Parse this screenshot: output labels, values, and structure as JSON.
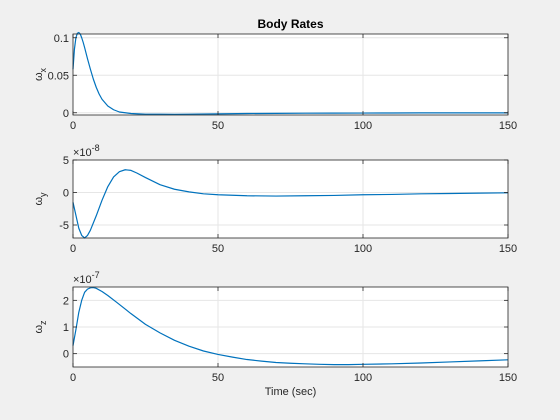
{
  "figure": {
    "background": "#f0f0f0",
    "axes_background": "#ffffff",
    "line_color": "#0072bd",
    "grid_color": "#e6e6e6",
    "axis_color": "#262626"
  },
  "chart_data": [
    {
      "type": "line",
      "title": "Body Rates",
      "ylabel": "ω",
      "ylabel_sub": "x",
      "xlabel": "",
      "xlim": [
        0,
        150
      ],
      "ylim": [
        -0.003,
        0.105
      ],
      "xticks": [
        0,
        50,
        100,
        150
      ],
      "xtick_labels": [
        "0",
        "50",
        "100",
        "150"
      ],
      "yticks": [
        0,
        0.05,
        0.1
      ],
      "ytick_labels": [
        "0",
        "0.05",
        "0.1"
      ],
      "exponent": "",
      "grid": true,
      "series": [
        {
          "x": [
            0,
            0.5,
            1,
            1.5,
            2,
            2.5,
            3,
            3.5,
            4,
            5,
            6,
            7,
            8,
            9,
            10,
            12,
            14,
            16,
            18,
            20,
            25,
            30,
            35,
            40,
            50,
            60,
            70,
            80,
            90,
            100,
            110,
            120,
            130,
            140,
            150
          ],
          "y": [
            0.058,
            0.085,
            0.1,
            0.106,
            0.107,
            0.105,
            0.1,
            0.094,
            0.087,
            0.072,
            0.058,
            0.045,
            0.034,
            0.025,
            0.018,
            0.009,
            0.004,
            0.001,
            0,
            -0.001,
            -0.002,
            -0.002,
            -0.0022,
            -0.002,
            -0.0015,
            -0.001,
            -0.0008,
            -0.0006,
            -0.0005,
            -0.0004,
            -0.0003,
            -0.0002,
            -0.0002,
            -0.0002,
            -0.0002
          ]
        }
      ]
    },
    {
      "type": "line",
      "title": "",
      "ylabel": "ω",
      "ylabel_sub": "y",
      "xlabel": "",
      "xlim": [
        0,
        150
      ],
      "ylim": [
        -7,
        5
      ],
      "xticks": [
        0,
        50,
        100,
        150
      ],
      "xtick_labels": [
        "0",
        "50",
        "100",
        "150"
      ],
      "yticks": [
        -5,
        0,
        5
      ],
      "ytick_labels": [
        "-5",
        "0",
        "5"
      ],
      "exponent": "-8",
      "grid": true,
      "series": [
        {
          "x": [
            0,
            1,
            2,
            3,
            4,
            5,
            6,
            8,
            10,
            12,
            14,
            16,
            18,
            20,
            22,
            25,
            30,
            35,
            40,
            45,
            50,
            60,
            70,
            80,
            90,
            100,
            110,
            120,
            130,
            140,
            150
          ],
          "y": [
            -1.5,
            -3.5,
            -5.5,
            -6.6,
            -7.0,
            -6.6,
            -5.8,
            -3.6,
            -1.2,
            0.9,
            2.4,
            3.2,
            3.5,
            3.4,
            3.0,
            2.3,
            1.2,
            0.5,
            0.1,
            -0.2,
            -0.35,
            -0.5,
            -0.55,
            -0.5,
            -0.45,
            -0.35,
            -0.3,
            -0.2,
            -0.15,
            -0.1,
            -0.05
          ]
        }
      ]
    },
    {
      "type": "line",
      "title": "",
      "ylabel": "ω",
      "ylabel_sub": "z",
      "xlabel": "Time (sec)",
      "xlim": [
        0,
        150
      ],
      "ylim": [
        -0.5,
        2.5
      ],
      "xticks": [
        0,
        50,
        100,
        150
      ],
      "xtick_labels": [
        "0",
        "50",
        "100",
        "150"
      ],
      "yticks": [
        0,
        1,
        2
      ],
      "ytick_labels": [
        "0",
        "1",
        "2"
      ],
      "exponent": "-7",
      "grid": true,
      "series": [
        {
          "x": [
            0,
            1,
            2,
            3,
            4,
            5,
            6,
            7,
            8,
            10,
            12,
            15,
            20,
            25,
            30,
            35,
            40,
            45,
            50,
            55,
            60,
            65,
            70,
            75,
            80,
            85,
            90,
            95,
            100,
            110,
            120,
            130,
            140,
            150
          ],
          "y": [
            0.3,
            0.9,
            1.55,
            2.0,
            2.3,
            2.42,
            2.47,
            2.48,
            2.45,
            2.33,
            2.18,
            1.93,
            1.5,
            1.1,
            0.78,
            0.5,
            0.28,
            0.1,
            -0.03,
            -0.13,
            -0.22,
            -0.28,
            -0.33,
            -0.36,
            -0.38,
            -0.4,
            -0.41,
            -0.41,
            -0.4,
            -0.38,
            -0.35,
            -0.31,
            -0.27,
            -0.23
          ]
        }
      ]
    }
  ]
}
